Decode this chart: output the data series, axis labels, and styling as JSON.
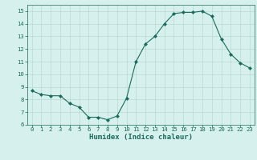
{
  "x": [
    0,
    1,
    2,
    3,
    4,
    5,
    6,
    7,
    8,
    9,
    10,
    11,
    12,
    13,
    14,
    15,
    16,
    17,
    18,
    19,
    20,
    21,
    22,
    23
  ],
  "y": [
    8.7,
    8.4,
    8.3,
    8.3,
    7.7,
    7.4,
    6.6,
    6.6,
    6.4,
    6.7,
    8.1,
    11.0,
    12.4,
    13.0,
    14.0,
    14.8,
    14.9,
    14.9,
    15.0,
    14.6,
    12.8,
    11.6,
    10.9,
    10.5
  ],
  "xlabel": "Humidex (Indice chaleur)",
  "xlim": [
    -0.5,
    23.5
  ],
  "ylim": [
    6,
    15.5
  ],
  "yticks": [
    6,
    7,
    8,
    9,
    10,
    11,
    12,
    13,
    14,
    15
  ],
  "xticks": [
    0,
    1,
    2,
    3,
    4,
    5,
    6,
    7,
    8,
    9,
    10,
    11,
    12,
    13,
    14,
    15,
    16,
    17,
    18,
    19,
    20,
    21,
    22,
    23
  ],
  "line_color": "#1a6b5a",
  "marker": "D",
  "marker_size": 2.0,
  "bg_color": "#d6f0ee",
  "grid_color": "#b8d8d4",
  "xlabel_fontsize": 6.5,
  "tick_fontsize": 5.2
}
